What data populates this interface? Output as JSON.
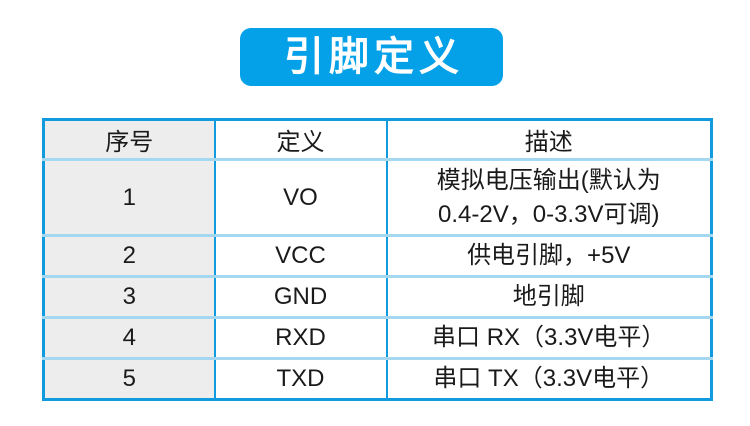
{
  "banner": {
    "title": "引脚定义"
  },
  "table": {
    "headers": [
      "序号",
      "定义",
      "描述"
    ],
    "rows": [
      {
        "no": "1",
        "def": "VO",
        "desc": "模拟电压输出(默认为\n0.4-2V，0-3.3V可调)"
      },
      {
        "no": "2",
        "def": "VCC",
        "desc": "供电引脚，+5V"
      },
      {
        "no": "3",
        "def": "GND",
        "desc": "地引脚"
      },
      {
        "no": "4",
        "def": "RXD",
        "desc": "串口 RX（3.3V电平）"
      },
      {
        "no": "5",
        "def": "TXD",
        "desc": "串口 TX（3.3V电平）"
      }
    ]
  },
  "theme": {
    "banner_bg": "#04A1E8",
    "banner_text": "#FFFFFF",
    "table_border": "#0F9BDD",
    "row_divider": "#A6D7F1",
    "col1_bg": "#EDEDED",
    "text_color": "#1A1A1A",
    "page_bg": "#FFFFFF"
  }
}
